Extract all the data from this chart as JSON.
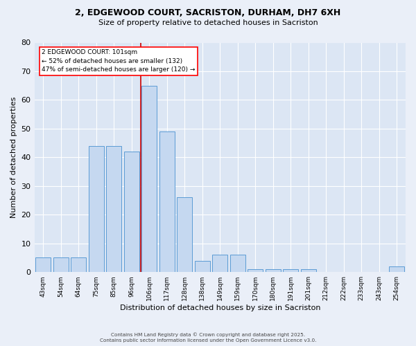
{
  "title_line1": "2, EDGEWOOD COURT, SACRISTON, DURHAM, DH7 6XH",
  "title_line2": "Size of property relative to detached houses in Sacriston",
  "xlabel": "Distribution of detached houses by size in Sacriston",
  "ylabel": "Number of detached properties",
  "footer_line1": "Contains HM Land Registry data © Crown copyright and database right 2025.",
  "footer_line2": "Contains public sector information licensed under the Open Government Licence v3.0.",
  "categories": [
    "43sqm",
    "54sqm",
    "64sqm",
    "75sqm",
    "85sqm",
    "96sqm",
    "106sqm",
    "117sqm",
    "128sqm",
    "138sqm",
    "149sqm",
    "159sqm",
    "170sqm",
    "180sqm",
    "191sqm",
    "201sqm",
    "212sqm",
    "222sqm",
    "233sqm",
    "243sqm",
    "254sqm"
  ],
  "values": [
    5,
    5,
    5,
    44,
    44,
    42,
    65,
    49,
    26,
    4,
    6,
    6,
    1,
    1,
    1,
    1,
    0,
    0,
    0,
    0,
    2
  ],
  "bar_color": "#c5d8f0",
  "bar_edge_color": "#5b9bd5",
  "plot_bg_color": "#dce6f4",
  "fig_bg_color": "#eaeff8",
  "grid_color": "#ffffff",
  "annotation_text_line1": "2 EDGEWOOD COURT: 101sqm",
  "annotation_text_line2": "← 52% of detached houses are smaller (132)",
  "annotation_text_line3": "47% of semi-detached houses are larger (120) →",
  "vline_color": "#cc0000",
  "vline_x": 5.5,
  "ylim": [
    0,
    80
  ],
  "yticks": [
    0,
    10,
    20,
    30,
    40,
    50,
    60,
    70,
    80
  ]
}
